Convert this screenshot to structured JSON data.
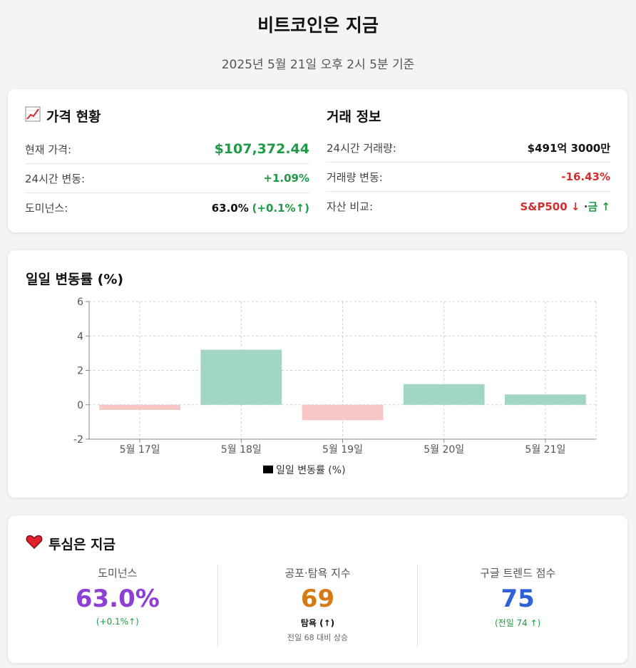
{
  "header": {
    "title": "비트코인은 지금",
    "timestamp": "2025년 5월 21일 오후 2시 5분 기준"
  },
  "price_status": {
    "icon": "chart-increasing-icon",
    "title": "가격 현황",
    "rows": [
      {
        "label": "현재 가격:",
        "value": "$107,372.44"
      },
      {
        "label": "24시간 변동:",
        "value": "+1.09%"
      },
      {
        "label": "도미넌스:",
        "value": "63.0%",
        "change": "(+0.1%↑)"
      }
    ]
  },
  "trade_info": {
    "title": "거래 정보",
    "rows": [
      {
        "label": "24시간 거래량:",
        "value": "$491억 3000만"
      },
      {
        "label": "거래량 변동:",
        "value": "-16.43%"
      },
      {
        "label": "자산 비교:",
        "value_a": "S&P500 ↓",
        "separator": "·",
        "value_b": "금 ↑"
      }
    ]
  },
  "chart_section": {
    "title": "일일 변동률 (%)"
  },
  "chart_data": {
    "type": "bar",
    "categories": [
      "5월 17일",
      "5월 18일",
      "5월 19일",
      "5월 20일",
      "5월 21일"
    ],
    "series": [
      {
        "name": "일일 변동률 (%)",
        "values": [
          -0.3,
          3.2,
          -0.9,
          1.2,
          0.6
        ]
      }
    ],
    "ylim": [
      -2,
      6
    ],
    "yticks": [
      -2,
      0,
      2,
      4,
      6
    ],
    "grid": true,
    "legend": "bottom",
    "colors": {
      "positive": "#a0d6c3",
      "negative": "#f7c7c6",
      "legend_swatch": "#000000"
    }
  },
  "sentiment": {
    "icon": "heart-icon",
    "title": "투심은 지금",
    "dominance": {
      "label": "도미넌스",
      "value": "63.0%",
      "change": "(+0.1%↑)"
    },
    "fear_greed": {
      "label": "공포·탐욕 지수",
      "value": "69",
      "state": "탐욕 (↑)",
      "note": "전일 68 대비 상승"
    },
    "google_trends": {
      "label": "구글 트렌드 점수",
      "value": "75",
      "change": "(전일 74 ↑)"
    }
  }
}
